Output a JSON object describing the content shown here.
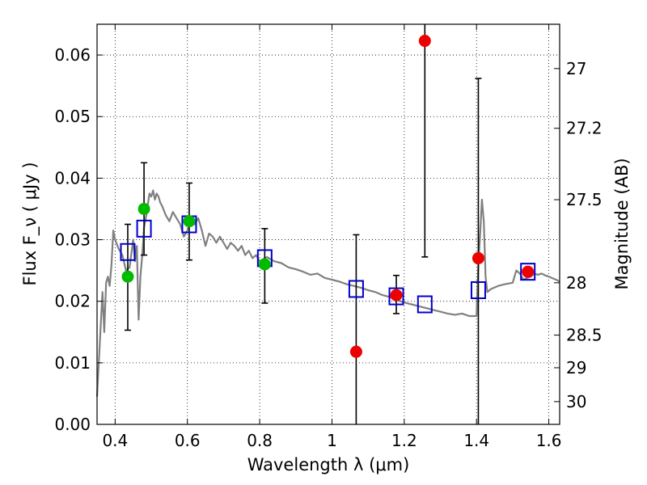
{
  "chart_data": {
    "type": "scatter",
    "xlabel": "Wavelength  λ (μm)",
    "ylabel": "Flux  F_ν  ( μJy )",
    "ylabel_right": "Magnitude (AB)",
    "xlim": [
      0.35,
      1.63
    ],
    "ylim": [
      0.0,
      0.065
    ],
    "grid": true,
    "x_ticks": [
      0.4,
      0.6,
      0.8,
      1.0,
      1.2,
      1.4,
      1.6
    ],
    "x_tick_labels": [
      "0.4",
      "0.6",
      "0.8",
      "1",
      "1.2",
      "1.4",
      "1.6"
    ],
    "y_ticks": [
      0.0,
      0.01,
      0.02,
      0.03,
      0.04,
      0.05,
      0.06
    ],
    "y_tick_labels": [
      "0.00",
      "0.01",
      "0.02",
      "0.03",
      "0.04",
      "0.05",
      "0.06"
    ],
    "right_ticks": [
      {
        "label": "27",
        "flux": 0.0578
      },
      {
        "label": "27.2",
        "flux": 0.0481
      },
      {
        "label": "27.5",
        "flux": 0.0365
      },
      {
        "label": "28",
        "flux": 0.023
      },
      {
        "label": "28.5",
        "flux": 0.0145
      },
      {
        "label": "29",
        "flux": 0.0092
      },
      {
        "label": "30",
        "flux": 0.0037
      }
    ],
    "series": [
      {
        "name": "model-spectrum",
        "kind": "line",
        "color": "#808080",
        "points": [
          [
            0.35,
            0.0045
          ],
          [
            0.36,
            0.016
          ],
          [
            0.365,
            0.0215
          ],
          [
            0.37,
            0.015
          ],
          [
            0.375,
            0.023
          ],
          [
            0.38,
            0.024
          ],
          [
            0.385,
            0.0225
          ],
          [
            0.39,
            0.026
          ],
          [
            0.395,
            0.0315
          ],
          [
            0.4,
            0.03
          ],
          [
            0.41,
            0.0285
          ],
          [
            0.42,
            0.0275
          ],
          [
            0.43,
            0.025
          ],
          [
            0.44,
            0.0255
          ],
          [
            0.45,
            0.03
          ],
          [
            0.455,
            0.0265
          ],
          [
            0.46,
            0.029
          ],
          [
            0.465,
            0.017
          ],
          [
            0.47,
            0.024
          ],
          [
            0.475,
            0.0275
          ],
          [
            0.48,
            0.032
          ],
          [
            0.485,
            0.0335
          ],
          [
            0.49,
            0.0355
          ],
          [
            0.495,
            0.0375
          ],
          [
            0.5,
            0.037
          ],
          [
            0.505,
            0.038
          ],
          [
            0.51,
            0.0365
          ],
          [
            0.515,
            0.0375
          ],
          [
            0.52,
            0.037
          ],
          [
            0.525,
            0.036
          ],
          [
            0.53,
            0.0355
          ],
          [
            0.54,
            0.034
          ],
          [
            0.55,
            0.033
          ],
          [
            0.56,
            0.0345
          ],
          [
            0.57,
            0.0335
          ],
          [
            0.58,
            0.0325
          ],
          [
            0.59,
            0.0305
          ],
          [
            0.6,
            0.0315
          ],
          [
            0.61,
            0.0335
          ],
          [
            0.62,
            0.0325
          ],
          [
            0.63,
            0.0335
          ],
          [
            0.64,
            0.0315
          ],
          [
            0.65,
            0.029
          ],
          [
            0.66,
            0.031
          ],
          [
            0.67,
            0.0305
          ],
          [
            0.68,
            0.0295
          ],
          [
            0.69,
            0.0305
          ],
          [
            0.7,
            0.0295
          ],
          [
            0.71,
            0.0285
          ],
          [
            0.72,
            0.0295
          ],
          [
            0.73,
            0.029
          ],
          [
            0.74,
            0.0282
          ],
          [
            0.75,
            0.029
          ],
          [
            0.76,
            0.0275
          ],
          [
            0.77,
            0.0282
          ],
          [
            0.78,
            0.027
          ],
          [
            0.79,
            0.0275
          ],
          [
            0.8,
            0.0265
          ],
          [
            0.82,
            0.0272
          ],
          [
            0.84,
            0.0265
          ],
          [
            0.86,
            0.0262
          ],
          [
            0.88,
            0.0255
          ],
          [
            0.9,
            0.0252
          ],
          [
            0.92,
            0.0248
          ],
          [
            0.94,
            0.0243
          ],
          [
            0.96,
            0.0245
          ],
          [
            0.98,
            0.0238
          ],
          [
            1.0,
            0.0235
          ],
          [
            1.02,
            0.0232
          ],
          [
            1.04,
            0.0228
          ],
          [
            1.06,
            0.0225
          ],
          [
            1.08,
            0.0222
          ],
          [
            1.1,
            0.0218
          ],
          [
            1.12,
            0.0215
          ],
          [
            1.14,
            0.021
          ],
          [
            1.16,
            0.0207
          ],
          [
            1.18,
            0.0202
          ],
          [
            1.2,
            0.0198
          ],
          [
            1.22,
            0.0195
          ],
          [
            1.24,
            0.0192
          ],
          [
            1.26,
            0.0189
          ],
          [
            1.28,
            0.0186
          ],
          [
            1.3,
            0.0183
          ],
          [
            1.32,
            0.018
          ],
          [
            1.34,
            0.0178
          ],
          [
            1.36,
            0.018
          ],
          [
            1.38,
            0.0176
          ],
          [
            1.4,
            0.0176
          ],
          [
            1.405,
            0.026
          ],
          [
            1.41,
            0.031
          ],
          [
            1.415,
            0.0365
          ],
          [
            1.42,
            0.033
          ],
          [
            1.425,
            0.024
          ],
          [
            1.43,
            0.0215
          ],
          [
            1.44,
            0.022
          ],
          [
            1.46,
            0.0225
          ],
          [
            1.48,
            0.0228
          ],
          [
            1.5,
            0.023
          ],
          [
            1.51,
            0.025
          ],
          [
            1.52,
            0.0245
          ],
          [
            1.53,
            0.0235
          ],
          [
            1.54,
            0.0238
          ],
          [
            1.55,
            0.024
          ],
          [
            1.56,
            0.0245
          ],
          [
            1.57,
            0.0243
          ],
          [
            1.58,
            0.0245
          ],
          [
            1.59,
            0.0242
          ],
          [
            1.6,
            0.024
          ],
          [
            1.62,
            0.0235
          ],
          [
            1.63,
            0.0232
          ]
        ]
      },
      {
        "name": "green-photometry",
        "kind": "points-errorbars",
        "color": "#00bb00",
        "points": [
          {
            "x": 0.435,
            "y": 0.024,
            "lo": 0.0153,
            "hi": 0.0325
          },
          {
            "x": 0.48,
            "y": 0.035,
            "lo": 0.0275,
            "hi": 0.0425
          },
          {
            "x": 0.605,
            "y": 0.033,
            "lo": 0.0267,
            "hi": 0.0392
          },
          {
            "x": 0.814,
            "y": 0.026,
            "lo": 0.0197,
            "hi": 0.0318
          }
        ]
      },
      {
        "name": "red-photometry",
        "kind": "points-errorbars",
        "color": "#ee0000",
        "points": [
          {
            "x": 1.067,
            "y": 0.0118,
            "lo": 0.0,
            "hi": 0.0308
          },
          {
            "x": 1.178,
            "y": 0.021,
            "lo": 0.018,
            "hi": 0.0242
          },
          {
            "x": 1.257,
            "y": 0.0623,
            "lo": 0.0272,
            "hi": 0.065
          },
          {
            "x": 1.405,
            "y": 0.027,
            "lo": 0.0,
            "hi": 0.0562
          },
          {
            "x": 1.542,
            "y": 0.0248,
            "lo": null,
            "hi": null
          }
        ]
      },
      {
        "name": "blue-model-points",
        "kind": "open-squares",
        "color": "#0000cc",
        "points": [
          {
            "x": 0.435,
            "y": 0.028
          },
          {
            "x": 0.48,
            "y": 0.0318
          },
          {
            "x": 0.605,
            "y": 0.0325
          },
          {
            "x": 0.814,
            "y": 0.027
          },
          {
            "x": 1.067,
            "y": 0.022
          },
          {
            "x": 1.178,
            "y": 0.0208
          },
          {
            "x": 1.257,
            "y": 0.0195
          },
          {
            "x": 1.405,
            "y": 0.0218
          },
          {
            "x": 1.542,
            "y": 0.0248
          }
        ]
      }
    ]
  }
}
